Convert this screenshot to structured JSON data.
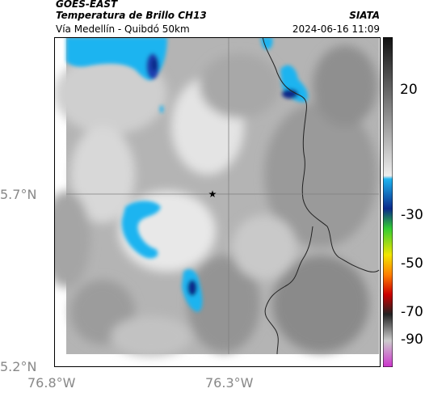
{
  "header": {
    "satellite": "GOES-EAST",
    "product": "Temperatura de Brillo CH13",
    "route": "Vía Medellín - Quibdó 50km",
    "agency": "SIATA",
    "datetime": "2024-06-16 11:09"
  },
  "axes": {
    "y_ticks": [
      "5.7°N",
      "5.2°N"
    ],
    "x_ticks": [
      "76.8°W",
      "76.3°W"
    ]
  },
  "colorbar": {
    "ticks": [
      "20",
      "-30",
      "-50",
      "-70",
      "-90"
    ],
    "colors": {
      "cold_blue": "#1fb4f0",
      "deep_blue": "#0a2a8a",
      "green": "#33cc33",
      "yellow": "#f2e600",
      "orange": "#ff7f00",
      "red": "#cc0000",
      "magenta": "#cc33cc"
    }
  },
  "map": {
    "marker": "star-marker",
    "gridline_color": "#808080",
    "border_color": "#222222"
  }
}
